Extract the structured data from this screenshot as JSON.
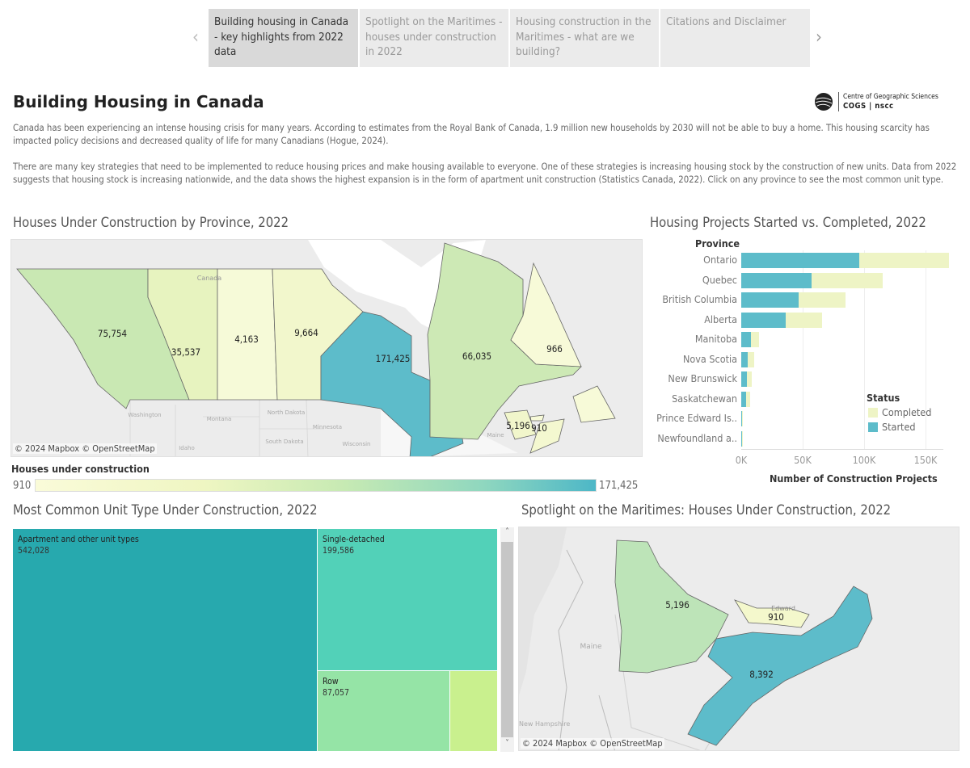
{
  "nav": {
    "prev_icon": "chevron-left-icon",
    "next_icon": "chevron-right-icon",
    "tabs": [
      {
        "label": "Building housing in Canada - key highlights from 2022 data",
        "active": true
      },
      {
        "label": "Spotlight on the Maritimes - houses under construction in 2022",
        "active": false
      },
      {
        "label": "Housing construction in the Maritimes - what are we building?",
        "active": false
      },
      {
        "label": "Citations and Disclaimer",
        "active": false
      }
    ]
  },
  "header": {
    "title": "Building Housing in Canada",
    "logo": {
      "line1": "Centre of Geographic Sciences",
      "line2": "COGS | nscc"
    },
    "paragraph1": "Canada has been experiencing an intense housing crisis for many years. According to estimates from the Royal Bank of Canada, 1.9 million new households by 2030 will not be able to buy a home. This housing scarcity has impacted policy decisions and decreased quality of life for many Canadians (Hogue, 2024).",
    "paragraph2": "There are many key strategies that need to be implemented to reduce housing prices and make housing available to everyone. One of these strategies is increasing housing stock by the construction of new units. Data from 2022 suggests that housing stock is increasing nationwide, and the data shows the highest expansion is in the form of apartment unit construction (Statistics Canada, 2022). Click on any province to see the most common unit type."
  },
  "province_map": {
    "title": "Houses Under Construction by Province, 2022",
    "attribution": "© 2024 Mapbox © OpenStreetMap",
    "basemap_labels": {
      "canada": "Canada",
      "washington": "Washington",
      "montana": "Montana",
      "north_dakota": "North Dakota",
      "south_dakota": "South Dakota",
      "minnesota": "Minnesota",
      "wisconsin": "Wisconsin",
      "idaho": "Idaho",
      "maine": "Maine"
    },
    "values": {
      "bc": "75,754",
      "ab": "35,537",
      "sk": "4,163",
      "mb": "9,664",
      "on": "171,425",
      "qc": "66,035",
      "nl": "966",
      "nb": "5,196",
      "pe": "910"
    },
    "colors": {
      "bc": "#c9e8b3",
      "ab": "#e7f3bf",
      "sk": "#f6fad8",
      "mb": "#f2f7cc",
      "on": "#5dbcca",
      "qc": "#cde9b5",
      "nl": "#f7fad8",
      "nb": "#f1f6cb",
      "ns": "#f4f8d0",
      "pe": "#f7fad8"
    },
    "legend": {
      "title": "Houses under construction",
      "min": "910",
      "max": "171,425"
    }
  },
  "bar_chart": {
    "title": "Housing Projects Started vs. Completed, 2022",
    "chart_data": {
      "type": "bar",
      "stacked": true,
      "orientation": "horizontal",
      "ylabel": "Province",
      "xlabel": "Number of Construction Projects",
      "categories": [
        "Ontario",
        "Quebec",
        "British Columbia",
        "Alberta",
        "Manitoba",
        "Nova Scotia",
        "New Brunswick",
        "Saskatchewan",
        "Prince Edward Is..",
        "Newfoundland a.."
      ],
      "series": [
        {
          "name": "Started",
          "color": "#5dbcca",
          "values": [
            96000,
            57000,
            47000,
            36000,
            7600,
            5400,
            4600,
            4100,
            700,
            700
          ]
        },
        {
          "name": "Completed",
          "color": "#eef4c5",
          "values": [
            73000,
            58000,
            38000,
            30000,
            6900,
            5000,
            4100,
            3100,
            300,
            300
          ]
        }
      ],
      "xlim": [
        0,
        170000
      ],
      "xticks": [
        "0K",
        "50K",
        "100K",
        "150K"
      ],
      "grid": true,
      "legend": {
        "title": "Status",
        "entries": [
          "Completed",
          "Started"
        ],
        "placement": "bottom-right"
      }
    }
  },
  "treemap": {
    "title": "Most Common Unit Type Under Construction, 2022",
    "items": [
      {
        "label": "Apartment and other unit types",
        "value": "542,028",
        "color": "#27a9ae"
      },
      {
        "label": "Single-detached",
        "value": "199,586",
        "color": "#52d1b8"
      },
      {
        "label": "Row",
        "value": "87,057",
        "color": "#95e4a6"
      },
      {
        "color": "#c9f08e"
      }
    ]
  },
  "maritimes_map": {
    "title": "Spotlight on the Maritimes: Houses Under Construction, 2022",
    "attribution": "© 2024 Mapbox © OpenStreetMap",
    "basemap_labels": {
      "maine": "Maine",
      "edward": "Edward",
      "nh": "New Hampshire"
    },
    "values": {
      "nb": "5,196",
      "pe": "910",
      "ns": "8,392"
    },
    "colors": {
      "nb": "#bde4b8",
      "pe": "#f4f8cc",
      "ns": "#5dbcca"
    }
  }
}
